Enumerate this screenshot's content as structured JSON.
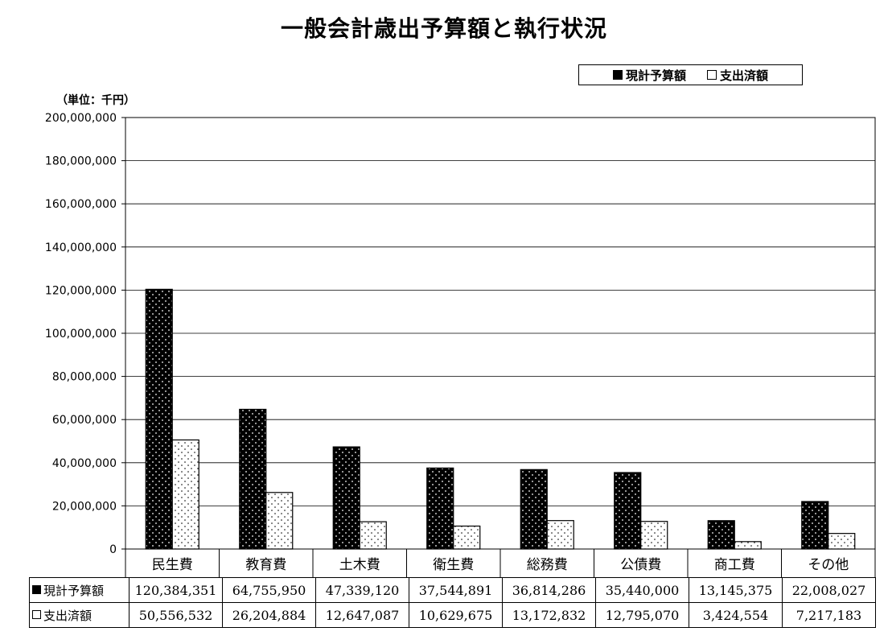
{
  "title": "一般会計歳出予算額と執行状況",
  "unit_label": "（単位：千円）",
  "legend": {
    "budget": "現計予算額",
    "spent": "支出済額"
  },
  "colors": {
    "budget": "#000000",
    "spent": "#ffffff",
    "grid": "#000000"
  },
  "chart_data": {
    "type": "bar",
    "title": "一般会計歳出予算額と執行状況",
    "ylabel": "（単位：千円）",
    "ylim": [
      0,
      200000000
    ],
    "yticks": [
      0,
      20000000,
      40000000,
      60000000,
      80000000,
      100000000,
      120000000,
      140000000,
      160000000,
      180000000,
      200000000
    ],
    "ytick_labels": [
      "0",
      "20,000,000",
      "40,000,000",
      "60,000,000",
      "80,000,000",
      "100,000,000",
      "120,000,000",
      "140,000,000",
      "160,000,000",
      "180,000,000",
      "200,000,000"
    ],
    "grid": true,
    "legend_position": "top-right",
    "categories": [
      "民生費",
      "教育費",
      "土木費",
      "衛生費",
      "総務費",
      "公債費",
      "商工費",
      "その他"
    ],
    "series": [
      {
        "name": "現計予算額",
        "values": [
          120384351,
          64755950,
          47339120,
          37544891,
          36814286,
          35440000,
          13145375,
          22008027
        ]
      },
      {
        "name": "支出済額",
        "values": [
          50556532,
          26204884,
          12647087,
          10629675,
          13172832,
          12795070,
          3424554,
          7217183
        ]
      }
    ]
  },
  "table": {
    "rows": [
      {
        "label": "現計予算額",
        "values": [
          "120,384,351",
          "64,755,950",
          "47,339,120",
          "37,544,891",
          "36,814,286",
          "35,440,000",
          "13,145,375",
          "22,008,027"
        ]
      },
      {
        "label": "支出済額",
        "values": [
          "50,556,532",
          "26,204,884",
          "12,647,087",
          "10,629,675",
          "13,172,832",
          "12,795,070",
          "3,424,554",
          "7,217,183"
        ]
      }
    ]
  }
}
